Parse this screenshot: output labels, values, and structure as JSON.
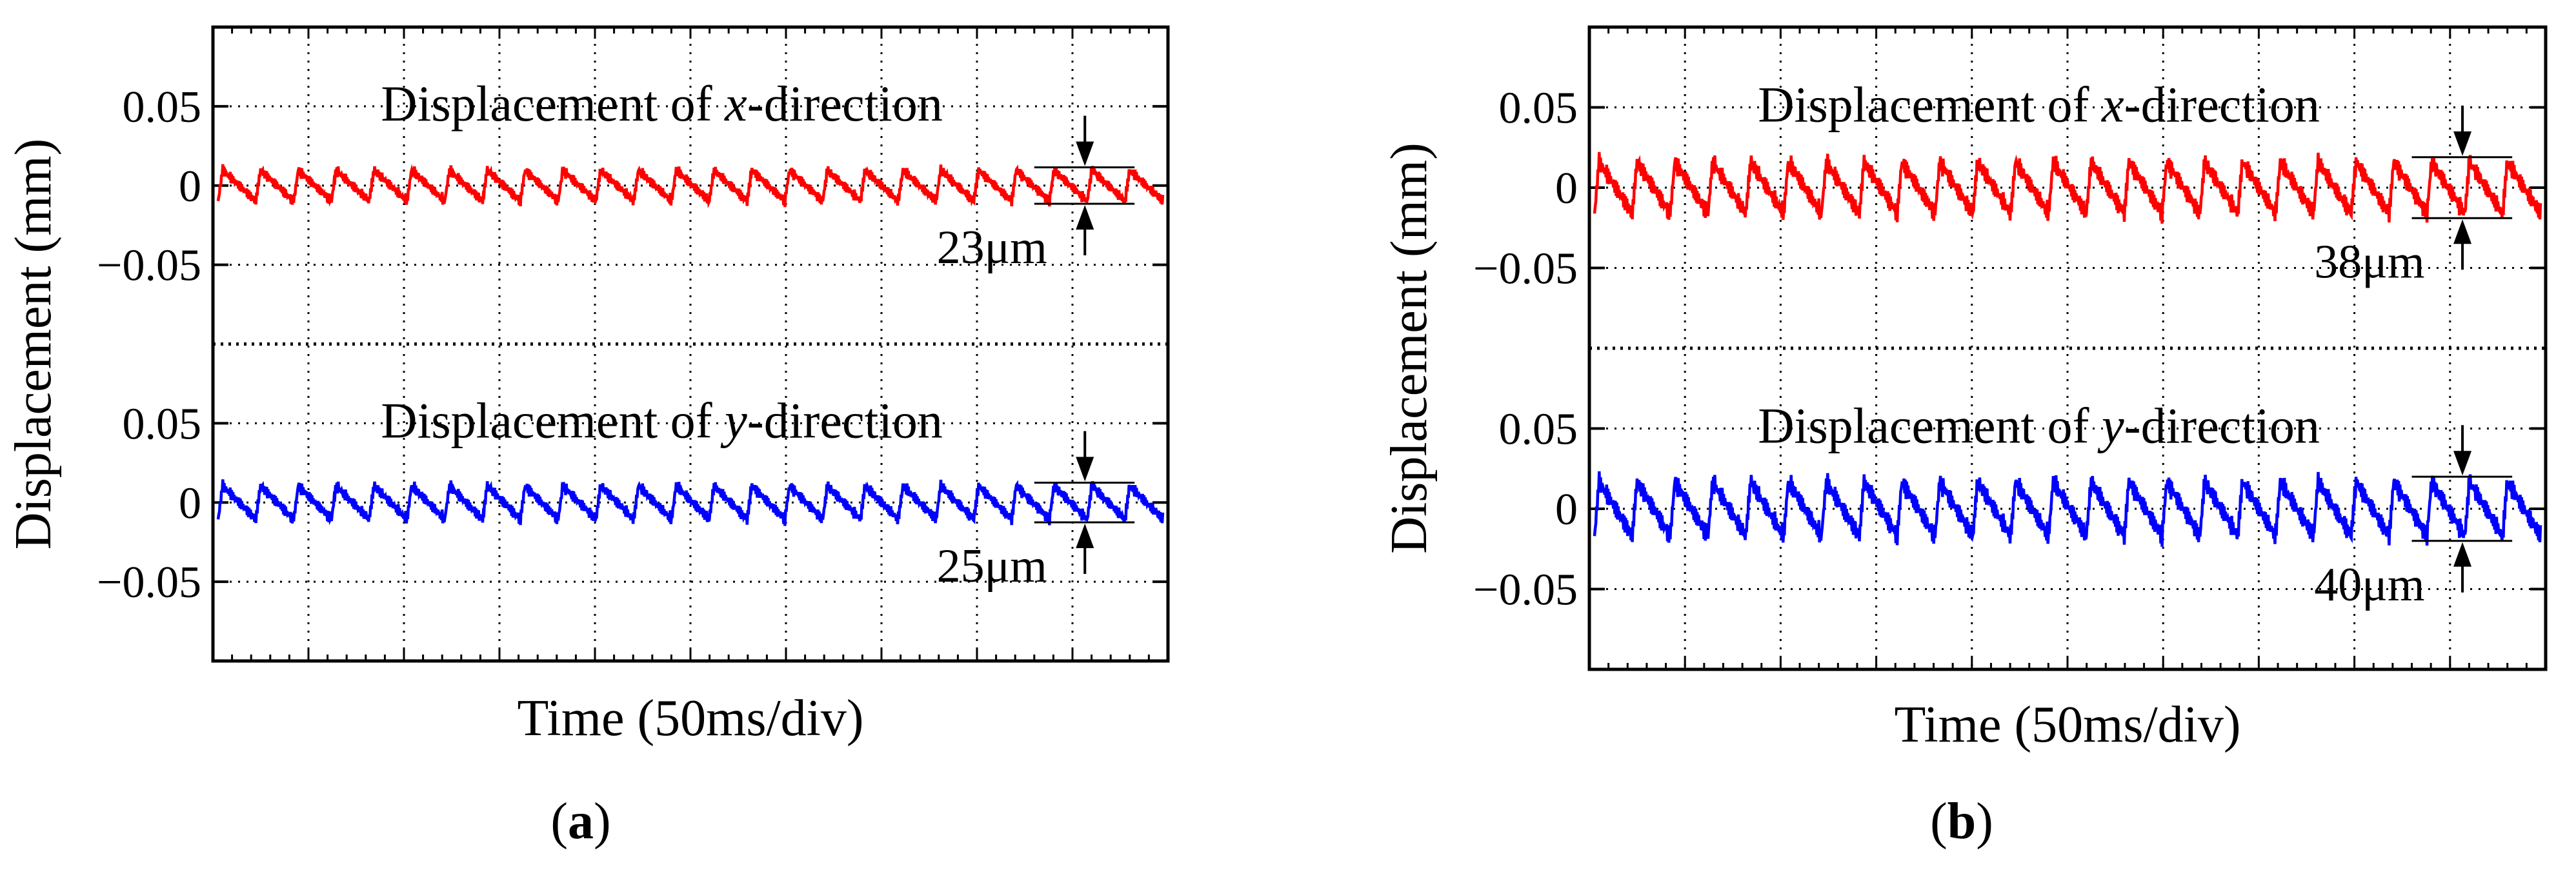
{
  "colors": {
    "x_trace": "#ff0000",
    "y_trace": "#0000ff",
    "frame": "#000000",
    "grid": "#000000"
  },
  "chart_data": [
    {
      "panel_label": "a",
      "type": "line",
      "xlabel": "Time (50ms/div)",
      "ylabel": "Displacement (mm)",
      "time_per_division_ms": 50,
      "x_divisions": 10,
      "subplots": [
        {
          "name": "x-direction",
          "title_prefix": "Displacement of ",
          "title_var": "x",
          "title_suffix": "-direction",
          "ylim": [
            -0.1,
            0.1
          ],
          "yticks": [
            0.05,
            0,
            -0.05
          ],
          "ytick_labels": [
            "0.05",
            "0",
            "−0.05"
          ],
          "color": "#ff0000",
          "signal": {
            "offset_mm": 0.0,
            "peak_to_peak_um": 23,
            "cycles": 25
          },
          "annotation": {
            "label": "23μm",
            "upper_mm": 0.0115,
            "lower_mm": -0.0115
          }
        },
        {
          "name": "y-direction",
          "title_prefix": "Displacement of ",
          "title_var": "y",
          "title_suffix": "-direction",
          "ylim": [
            -0.1,
            0.1
          ],
          "yticks": [
            0.05,
            0,
            -0.05
          ],
          "ytick_labels": [
            "0.05",
            "0",
            "−0.05"
          ],
          "color": "#0000ff",
          "signal": {
            "offset_mm": 0.0,
            "peak_to_peak_um": 25,
            "cycles": 25
          },
          "annotation": {
            "label": "25μm",
            "upper_mm": 0.0125,
            "lower_mm": -0.0125
          }
        }
      ]
    },
    {
      "panel_label": "b",
      "type": "line",
      "xlabel": "Time (50ms/div)",
      "ylabel": "Displacement (mm)",
      "time_per_division_ms": 50,
      "x_divisions": 10,
      "subplots": [
        {
          "name": "x-direction",
          "title_prefix": "Displacement of ",
          "title_var": "x",
          "title_suffix": "-direction",
          "ylim": [
            -0.1,
            0.1
          ],
          "yticks": [
            0.05,
            0,
            -0.05
          ],
          "ytick_labels": [
            "0.05",
            "0",
            "−0.05"
          ],
          "color": "#ff0000",
          "signal": {
            "offset_mm": 0.0,
            "peak_to_peak_um": 38,
            "cycles": 25
          },
          "annotation": {
            "label": "38μm",
            "upper_mm": 0.019,
            "lower_mm": -0.019
          }
        },
        {
          "name": "y-direction",
          "title_prefix": "Displacement of ",
          "title_var": "y",
          "title_suffix": "-direction",
          "ylim": [
            -0.1,
            0.1
          ],
          "yticks": [
            0.05,
            0,
            -0.05
          ],
          "ytick_labels": [
            "0.05",
            "0",
            "−0.05"
          ],
          "color": "#0000ff",
          "signal": {
            "offset_mm": 0.0,
            "peak_to_peak_um": 40,
            "cycles": 25
          },
          "annotation": {
            "label": "40μm",
            "upper_mm": 0.02,
            "lower_mm": -0.02
          }
        }
      ]
    }
  ]
}
